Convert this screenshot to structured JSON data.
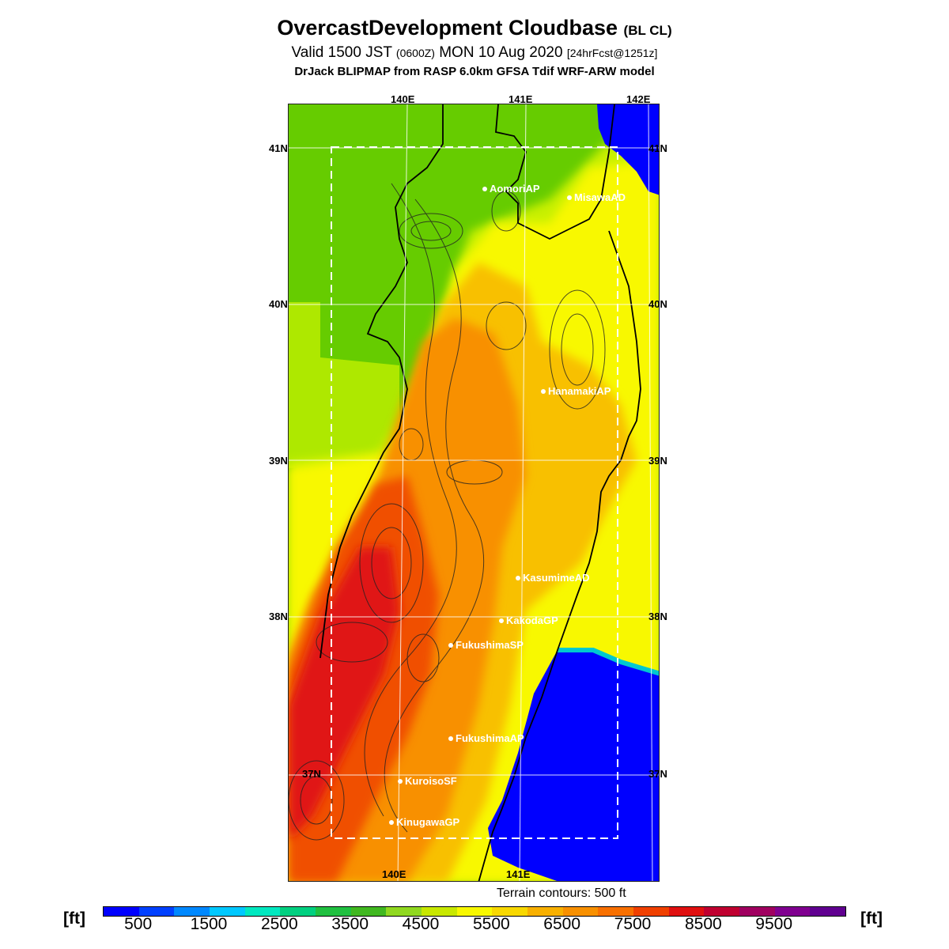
{
  "title": {
    "main": "OvercastDevelopment Cloudbase",
    "main_suffix": "(BL CL)",
    "valid_prefix": "Valid 1500 JST",
    "valid_zulu": "(0600Z)",
    "valid_date": "MON 10 Aug 2020",
    "valid_fcst": "[24hrFcst@1251z]",
    "model": "DrJack BLIPMAP from RASP 6.0km GFSA Tdif WRF-ARW model"
  },
  "grid_labels": {
    "lon_top": [
      "140E",
      "141E",
      "142E"
    ],
    "lon_bottom": [
      "140E",
      "141E"
    ],
    "lat_left": [
      "41N",
      "40N",
      "39N",
      "38N",
      "37N"
    ],
    "lat_right": [
      "41N",
      "40N",
      "39N",
      "38N",
      "37N"
    ]
  },
  "sites": [
    {
      "name": "AomoriAP"
    },
    {
      "name": "MisawaAD"
    },
    {
      "name": "HanamakiAP"
    },
    {
      "name": "KasumimeAD"
    },
    {
      "name": "KakodaGP"
    },
    {
      "name": "FukushimaSP"
    },
    {
      "name": "FukushimaAP"
    },
    {
      "name": "KuroisoSF"
    },
    {
      "name": "KinugawaGP"
    }
  ],
  "terrain_note": "Terrain contours: 500 ft",
  "colorbar": {
    "unit_left": "[ft]",
    "unit_right": "[ft]",
    "labels": [
      "500",
      "1500",
      "2500",
      "3500",
      "4500",
      "5500",
      "6500",
      "7500",
      "8500",
      "9500"
    ],
    "colors": [
      "#0000ff",
      "#0040ff",
      "#0088ff",
      "#00c8ff",
      "#00e8c0",
      "#00d080",
      "#20c040",
      "#40b820",
      "#90d820",
      "#c8e800",
      "#f8f800",
      "#f8d800",
      "#f8b000",
      "#f89000",
      "#f87000",
      "#f04000",
      "#e01010",
      "#c00030",
      "#a00060",
      "#800090",
      "#600090"
    ]
  },
  "map": {
    "ocean_color": "#0000ff",
    "land_low_color": "#66cc00",
    "mid_color": "#f8f800",
    "high_color": "#f84000"
  }
}
